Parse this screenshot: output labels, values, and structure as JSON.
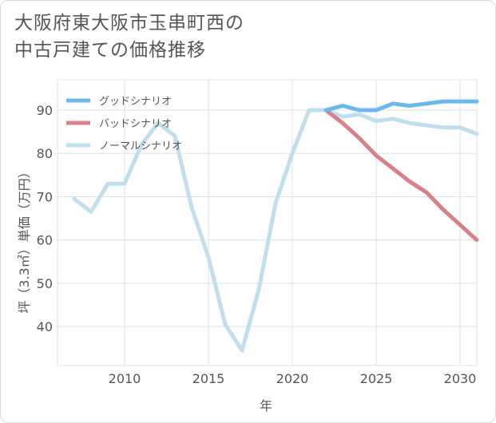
{
  "title": {
    "line1": "大阪府東大阪市玉串町西の",
    "line2": "中古戸建ての価格推移"
  },
  "colors": {
    "good": "#6bb8ec",
    "bad": "#d9808a",
    "normal": "#bfdfed",
    "grid": "#d8e3ec",
    "axis": "#555555"
  },
  "chart_data": {
    "type": "line",
    "title": "大阪府東大阪市玉串町西の中古戸建ての価格推移",
    "xlabel": "年",
    "ylabel": "坪（3.3㎡）単価（万円）",
    "xlim": [
      2006,
      2031
    ],
    "ylim": [
      31,
      97
    ],
    "xticks": [
      2010,
      2015,
      2020,
      2025,
      2030
    ],
    "yticks": [
      40,
      50,
      60,
      70,
      80,
      90
    ],
    "legend_position": "top-left",
    "series": [
      {
        "name": "グッドシナリオ",
        "key": "good",
        "x": [
          2022,
          2023,
          2024,
          2025,
          2026,
          2027,
          2028,
          2029,
          2030,
          2031
        ],
        "y": [
          90.0,
          91.0,
          90.0,
          90.0,
          91.5,
          91.0,
          91.5,
          92.0,
          92.0,
          92.0
        ]
      },
      {
        "name": "バッドシナリオ",
        "key": "bad",
        "x": [
          2022,
          2023,
          2024,
          2025,
          2026,
          2027,
          2028,
          2029,
          2030,
          2031
        ],
        "y": [
          90.0,
          87.0,
          83.5,
          79.5,
          76.5,
          73.5,
          71.0,
          67.0,
          63.5,
          60.0
        ]
      },
      {
        "name": "ノーマルシナリオ",
        "key": "normal",
        "x": [
          2007,
          2008,
          2009,
          2010,
          2011,
          2012,
          2013,
          2014,
          2015,
          2016,
          2017,
          2018,
          2019,
          2020,
          2021,
          2022,
          2023,
          2024,
          2025,
          2026,
          2027,
          2028,
          2029,
          2030,
          2031
        ],
        "y": [
          69.5,
          66.5,
          73.0,
          73.0,
          82.0,
          87.0,
          84.0,
          67.5,
          56.0,
          40.5,
          34.5,
          48.5,
          68.5,
          80.0,
          90.0,
          90.0,
          88.5,
          89.0,
          87.5,
          88.0,
          87.0,
          86.5,
          86.0,
          86.0,
          84.5
        ]
      }
    ]
  }
}
